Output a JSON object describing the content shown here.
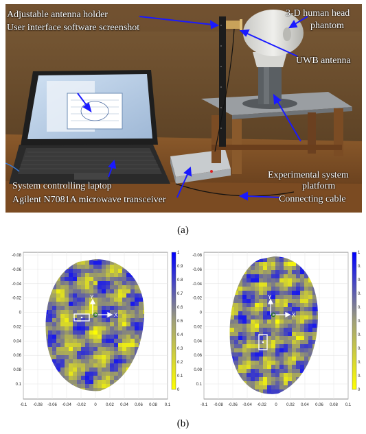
{
  "figure": {
    "photo_labels": {
      "antenna_holder": "Adjustable antenna holder",
      "ui_screenshot": "User interface software screenshot",
      "head_phantom_l1": "3-D human head",
      "head_phantom_l2": "phantom",
      "uwb_antenna": "UWB antenna",
      "platform_l1": "Experimental system",
      "platform_l2": "platform",
      "laptop": "System controlling laptop",
      "transceiver": "Agilent N7081A microwave transceiver",
      "cable": "Connecting cable"
    },
    "caption_a": "(a)",
    "caption_b": "(b)",
    "arrow_color": "#1a1aff",
    "colormap": [
      "#ffff00",
      "#0000ff"
    ]
  },
  "plot_left": {
    "y_ticks": [
      "-0.08",
      "-0.06",
      "-0.04",
      "-0.02",
      "0",
      "0.02",
      "0.04",
      "0.06",
      "0.08",
      "0.1"
    ],
    "x_ticks": [
      "-0.1",
      "-0.08",
      "-0.06",
      "-0.04",
      "-0.02",
      "0",
      "0.02",
      "0.04",
      "0.06",
      "0.08",
      "0.1"
    ],
    "colorbar_ticks": [
      "1",
      "0.9",
      "0.8",
      "0.7",
      "0.6",
      "0.5",
      "0.4",
      "0.3",
      "0.2",
      "0.1",
      "0"
    ],
    "axis_x_label": "X",
    "axis_y_label": "Y"
  },
  "plot_right": {
    "y_ticks": [
      "-0.08",
      "-0.06",
      "-0.04",
      "-0.02",
      "0",
      "0.02",
      "0.04",
      "0.06",
      "0.08",
      "0.1"
    ],
    "x_ticks": [
      "-0.1",
      "-0.08",
      "-0.06",
      "-0.04",
      "-0.02",
      "0",
      "0.02",
      "0.04",
      "0.06",
      "0.08",
      "0.1"
    ],
    "colorbar_ticks": [
      "1",
      "0.",
      "0.",
      "0.",
      "0.",
      "0.",
      "0.",
      "0.",
      "0.",
      "0.",
      "0"
    ],
    "axis_x_label": "X",
    "axis_y_label": "Y"
  }
}
